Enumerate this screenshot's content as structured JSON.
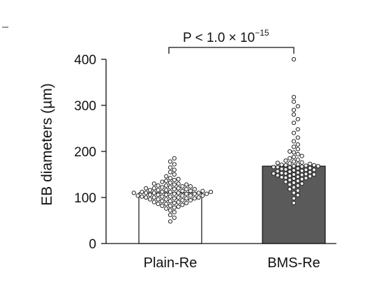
{
  "chart_data": {
    "type": "bar",
    "categories": [
      "Plain-Re",
      "BMS-Re"
    ],
    "values": [
      110,
      168
    ],
    "ylabel": "EB diameters (µm)",
    "ylim": [
      0,
      400
    ],
    "yticks": [
      0,
      100,
      200,
      300,
      400
    ],
    "bar_colors": [
      "#ffffff",
      "#5a5a5a"
    ],
    "grid": false,
    "annotation": {
      "text": "P < 1.0 × 10",
      "exponent": "−15"
    },
    "points": [
      [
        48,
        56,
        62,
        68,
        72,
        76,
        78,
        80,
        82,
        82,
        84,
        86,
        86,
        88,
        88,
        90,
        90,
        92,
        92,
        94,
        94,
        96,
        96,
        96,
        98,
        98,
        98,
        100,
        100,
        100,
        100,
        102,
        102,
        102,
        104,
        104,
        104,
        104,
        106,
        106,
        106,
        108,
        108,
        108,
        108,
        110,
        110,
        110,
        110,
        110,
        112,
        112,
        112,
        112,
        114,
        114,
        114,
        116,
        116,
        116,
        118,
        118,
        118,
        120,
        120,
        120,
        122,
        122,
        124,
        124,
        126,
        126,
        128,
        128,
        130,
        130,
        132,
        134,
        136,
        138,
        140,
        142,
        146,
        150,
        155,
        160,
        165,
        172,
        178,
        185
      ],
      [
        88,
        98,
        105,
        110,
        115,
        118,
        122,
        126,
        128,
        130,
        132,
        134,
        136,
        138,
        140,
        141,
        142,
        143,
        144,
        145,
        146,
        147,
        148,
        149,
        150,
        150,
        151,
        152,
        152,
        153,
        154,
        155,
        156,
        157,
        158,
        159,
        160,
        160,
        161,
        162,
        163,
        164,
        165,
        166,
        166,
        167,
        168,
        168,
        169,
        170,
        170,
        171,
        172,
        173,
        174,
        175,
        176,
        178,
        180,
        182,
        185,
        188,
        190,
        194,
        198,
        200,
        205,
        210,
        215,
        222,
        230,
        240,
        248,
        262,
        270,
        280,
        290,
        298,
        308,
        318,
        400
      ]
    ]
  }
}
